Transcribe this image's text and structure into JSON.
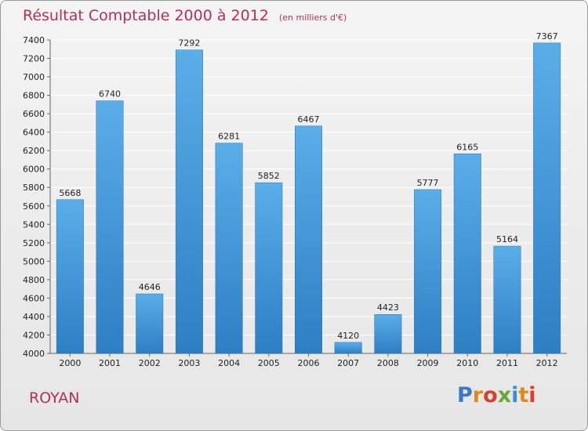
{
  "title": "Résultat Comptable 2000 à 2012",
  "subtitle": "(en milliers d'€)",
  "city": "ROYAN",
  "logo_text": "Proxiti",
  "colors": {
    "title": "#b0305f",
    "bar_top": "#5aaee8",
    "bar_bottom": "#2e7ec4",
    "grid": "#ffffff"
  },
  "chart_data": {
    "type": "bar",
    "title": "Résultat Comptable 2000 à 2012",
    "subtitle": "(en milliers d'€)",
    "xlabel": "",
    "ylabel": "",
    "categories": [
      "2000",
      "2001",
      "2002",
      "2003",
      "2004",
      "2005",
      "2006",
      "2007",
      "2008",
      "2009",
      "2010",
      "2011",
      "2012"
    ],
    "values": [
      5668,
      6740,
      4646,
      7292,
      6281,
      5852,
      6467,
      4120,
      4423,
      5777,
      6165,
      5164,
      7367
    ],
    "ylim": [
      4000,
      7400
    ],
    "yticks": [
      4000,
      4200,
      4400,
      4600,
      4800,
      5000,
      5200,
      5400,
      5600,
      5800,
      6000,
      6200,
      6400,
      6600,
      6800,
      7000,
      7200,
      7400
    ],
    "grid": true,
    "data_labels": true
  }
}
